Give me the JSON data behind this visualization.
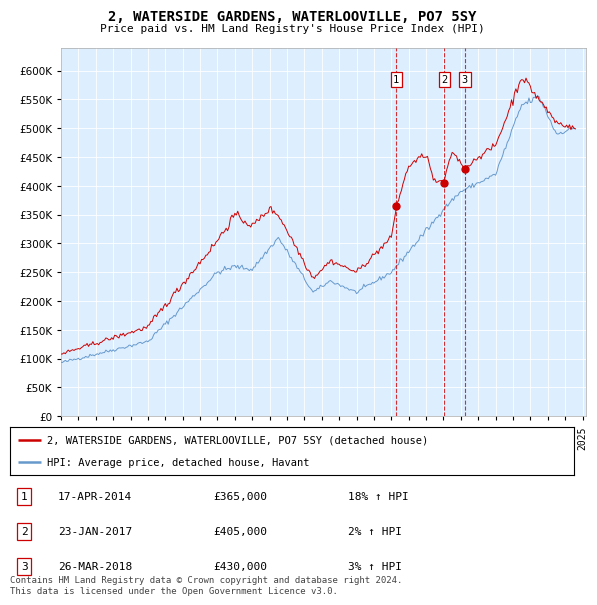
{
  "title": "2, WATERSIDE GARDENS, WATERLOOVILLE, PO7 5SY",
  "subtitle": "Price paid vs. HM Land Registry's House Price Index (HPI)",
  "legend_label_red": "2, WATERSIDE GARDENS, WATERLOOVILLE, PO7 5SY (detached house)",
  "legend_label_blue": "HPI: Average price, detached house, Havant",
  "footnote": "Contains HM Land Registry data © Crown copyright and database right 2024.\nThis data is licensed under the Open Government Licence v3.0.",
  "transactions": [
    {
      "num": 1,
      "date": "17-APR-2014",
      "price": 365000,
      "hpi_pct": "18%",
      "direction": "↑",
      "year_x": 2014.29
    },
    {
      "num": 2,
      "date": "23-JAN-2017",
      "price": 405000,
      "hpi_pct": "2%",
      "direction": "↑",
      "year_x": 2017.06
    },
    {
      "num": 3,
      "date": "26-MAR-2018",
      "price": 430000,
      "hpi_pct": "3%",
      "direction": "↑",
      "year_x": 2018.23
    }
  ],
  "red_color": "#cc0000",
  "blue_color": "#6699cc",
  "vline_color": "#cc0000",
  "background_plot": "#ddeeff",
  "grid_color": "#ffffff",
  "ylim": [
    0,
    640000
  ],
  "yticks": [
    0,
    50000,
    100000,
    150000,
    200000,
    250000,
    300000,
    350000,
    400000,
    450000,
    500000,
    550000,
    600000
  ],
  "marker_prices": [
    365000,
    405000,
    430000
  ],
  "marker_years": [
    2014.29,
    2017.06,
    2018.23
  ],
  "xlim_left": 1995,
  "xlim_right": 2025.2
}
